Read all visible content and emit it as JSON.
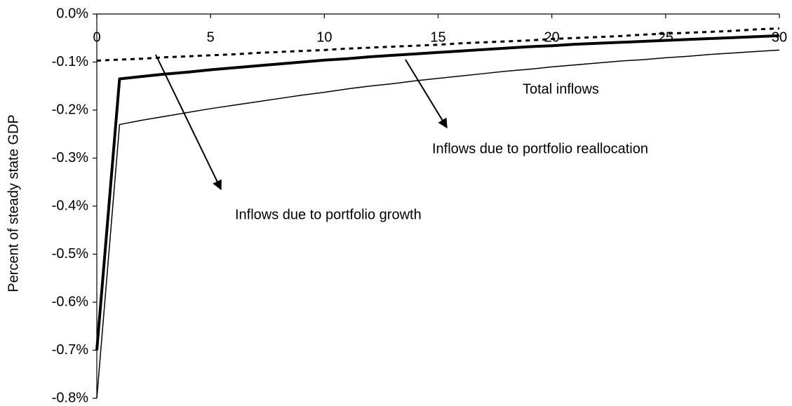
{
  "chart_data": {
    "type": "line",
    "y_label": "Percent of steady state GDP",
    "x": [
      0,
      1,
      2,
      3,
      4,
      5,
      6,
      7,
      8,
      9,
      10,
      11,
      12,
      13,
      14,
      15,
      16,
      17,
      18,
      19,
      20,
      21,
      22,
      23,
      24,
      25,
      26,
      27,
      28,
      29,
      30
    ],
    "series": [
      {
        "name": "Total inflows",
        "color": "#000000",
        "style": "thin",
        "values": [
          -0.8,
          -0.23,
          -0.221,
          -0.213,
          -0.205,
          -0.197,
          -0.19,
          -0.183,
          -0.176,
          -0.169,
          -0.163,
          -0.156,
          -0.15,
          -0.145,
          -0.139,
          -0.134,
          -0.129,
          -0.124,
          -0.119,
          -0.115,
          -0.11,
          -0.106,
          -0.102,
          -0.098,
          -0.095,
          -0.091,
          -0.088,
          -0.084,
          -0.081,
          -0.078,
          -0.075
        ]
      },
      {
        "name": "Inflows due to portfolio reallocation",
        "color": "#000000",
        "style": "thick",
        "values": [
          -0.7,
          -0.135,
          -0.13,
          -0.125,
          -0.121,
          -0.116,
          -0.112,
          -0.108,
          -0.104,
          -0.1,
          -0.096,
          -0.093,
          -0.089,
          -0.086,
          -0.083,
          -0.08,
          -0.077,
          -0.074,
          -0.071,
          -0.068,
          -0.066,
          -0.063,
          -0.061,
          -0.059,
          -0.057,
          -0.055,
          -0.053,
          -0.051,
          -0.049,
          -0.047,
          -0.045
        ]
      },
      {
        "name": "Inflows due to portfolio growth",
        "color": "#000000",
        "style": "dotted",
        "values": [
          -0.097,
          -0.095,
          -0.093,
          -0.09,
          -0.088,
          -0.086,
          -0.084,
          -0.081,
          -0.079,
          -0.077,
          -0.075,
          -0.072,
          -0.07,
          -0.068,
          -0.066,
          -0.064,
          -0.061,
          -0.059,
          -0.057,
          -0.055,
          -0.052,
          -0.05,
          -0.048,
          -0.046,
          -0.043,
          -0.041,
          -0.039,
          -0.037,
          -0.035,
          -0.032,
          -0.03
        ]
      }
    ],
    "xlim": [
      0,
      30
    ],
    "xticks": [
      0,
      5,
      10,
      15,
      20,
      25,
      30
    ],
    "ylim": [
      -0.8,
      0
    ],
    "yticks": [
      {
        "value": 0,
        "label": "0.0%"
      },
      {
        "value": -0.1,
        "label": "-0.1%"
      },
      {
        "value": -0.2,
        "label": "-0.2%"
      },
      {
        "value": -0.3,
        "label": "-0.3%"
      },
      {
        "value": -0.4,
        "label": "-0.4%"
      },
      {
        "value": -0.5,
        "label": "-0.5%"
      },
      {
        "value": -0.6,
        "label": "-0.6%"
      },
      {
        "value": -0.7,
        "label": "-0.7%"
      },
      {
        "value": -0.8,
        "label": "-0.8%"
      }
    ],
    "grid": false
  }
}
